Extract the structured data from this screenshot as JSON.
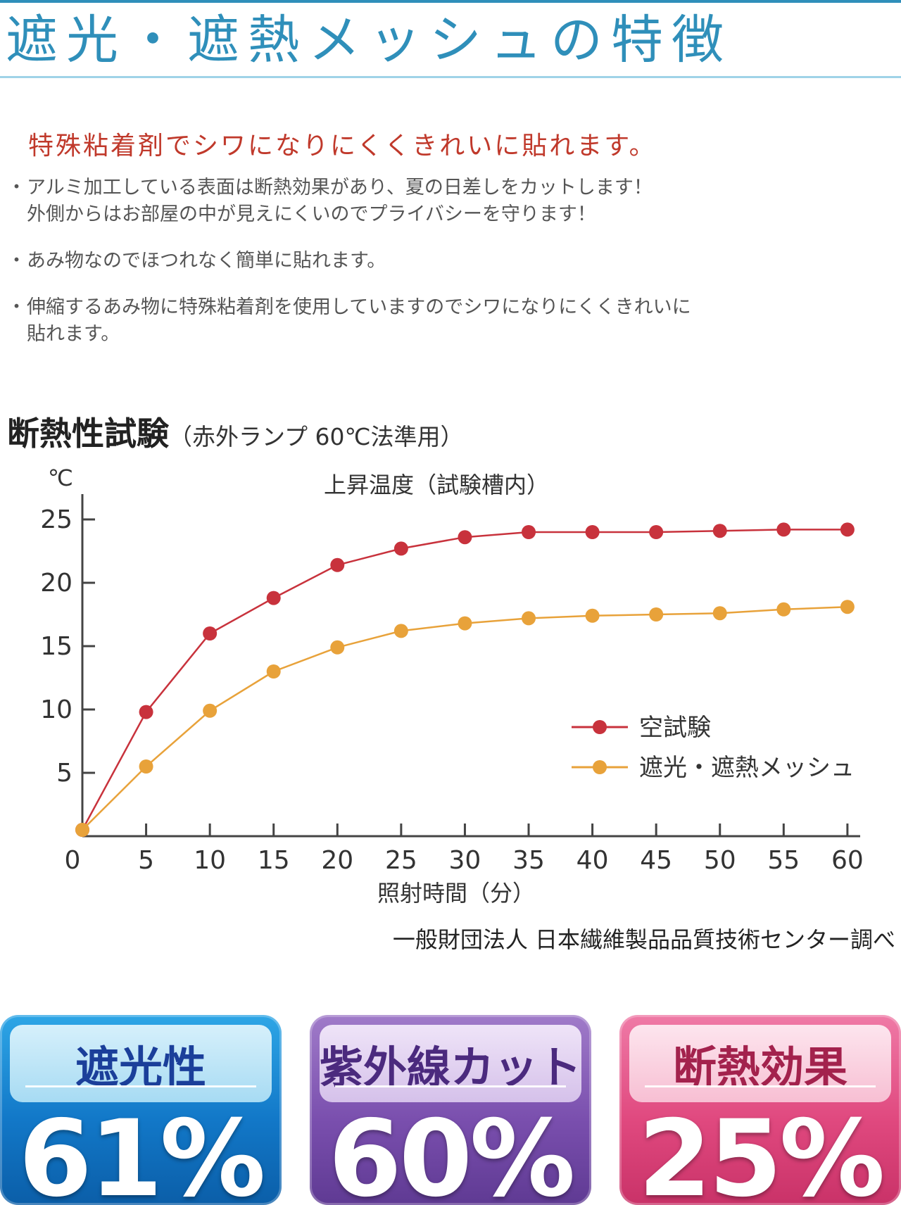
{
  "header": {
    "title": "遮光・遮熱メッシュの特徴"
  },
  "lead": "特殊粘着剤でシワになりにくくきれいに貼れます。",
  "bullets": [
    {
      "marker": "・",
      "lines": [
        "アルミ加工している表面は断熱効果があり、夏の日差しをカットします！",
        "外側からはお部屋の中が見えにくいのでプライバシーを守ります！"
      ]
    },
    {
      "marker": "・",
      "lines": [
        "あみ物なのでほつれなく簡単に貼れます。"
      ]
    },
    {
      "marker": "・",
      "lines": [
        "伸縮するあみ物に特殊粘着剤を使用していますのでシワになりにくくきれいに",
        "貼れます。"
      ]
    }
  ],
  "chart_heading": {
    "main": "断熱性試験",
    "sub": "（赤外ランプ 60℃法準用）"
  },
  "chart_data": {
    "type": "line",
    "title": "上昇温度（試験槽内）",
    "ylabel": "℃",
    "xlabel": "照射時間（分）",
    "x": [
      0,
      5,
      10,
      15,
      20,
      25,
      30,
      35,
      40,
      45,
      50,
      55,
      60
    ],
    "xlim": [
      0,
      61
    ],
    "ylim": [
      0,
      27
    ],
    "yticks": [
      5,
      10,
      15,
      20,
      25
    ],
    "xtick_labels": [
      "0",
      "5",
      "10",
      "15",
      "20",
      "25",
      "30",
      "35",
      "40",
      "45",
      "50",
      "55",
      "60"
    ],
    "ytick_labels": [
      "5",
      "10",
      "15",
      "20",
      "25"
    ],
    "grid": false,
    "legend_position": "right",
    "series": [
      {
        "name": "空試験",
        "color": "#c8323c",
        "values": [
          0.5,
          9.8,
          16.0,
          18.8,
          21.4,
          22.7,
          23.6,
          24.0,
          24.0,
          24.0,
          24.1,
          24.2,
          24.2
        ]
      },
      {
        "name": "遮光・遮熱メッシュ",
        "color": "#e8a23a",
        "values": [
          0.5,
          5.5,
          9.9,
          13.0,
          14.9,
          16.2,
          16.8,
          17.2,
          17.4,
          17.5,
          17.6,
          17.9,
          18.1
        ]
      }
    ]
  },
  "source": "一般財団法人 日本繊維製品品質技術センター調べ",
  "badges": [
    {
      "label": "遮光性",
      "value": "61%"
    },
    {
      "label": "紫外線カット",
      "value": "60%"
    },
    {
      "label": "断熱効果",
      "value": "25%"
    }
  ]
}
